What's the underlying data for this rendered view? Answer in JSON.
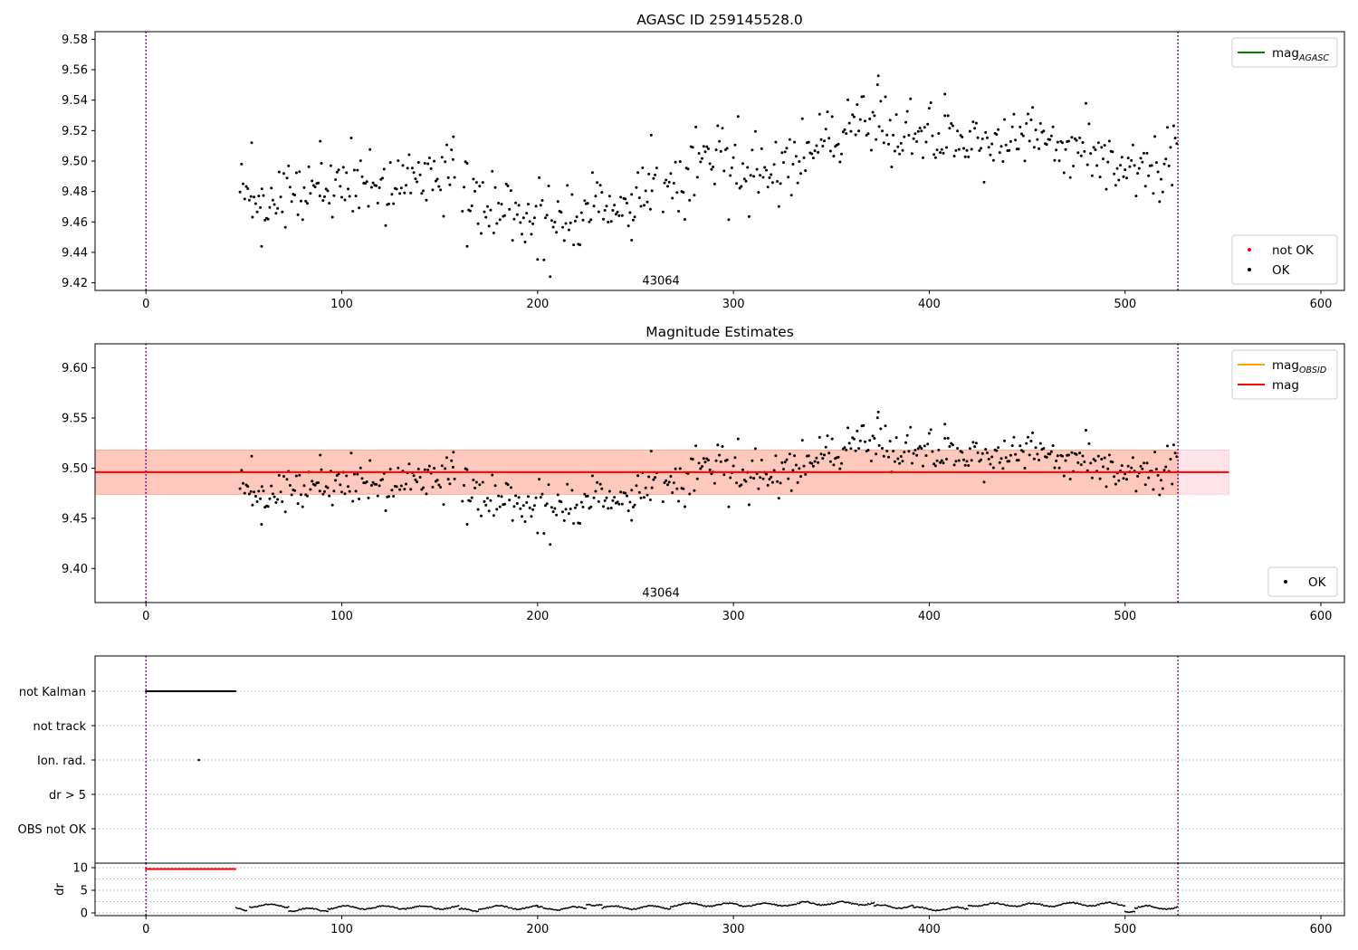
{
  "figure_title": "AGASC ID 259145528.0",
  "colors": {
    "ok": "#000000",
    "not_ok": "#ff0000",
    "agasc": "#008000",
    "obsid": "#ffa500",
    "mag": "#ff0000",
    "vline": "#800080",
    "band_pink": "#ffc0cb",
    "band_orange": "#ffa07a"
  },
  "chart_data": [
    {
      "type": "scatter",
      "title": "AGASC ID 259145528.0",
      "xlim": [
        -26,
        612
      ],
      "ylim": [
        9.415,
        9.585
      ],
      "xticks": [
        0,
        100,
        200,
        300,
        400,
        500,
        600
      ],
      "yticks": [
        9.42,
        9.44,
        9.46,
        9.48,
        9.5,
        9.52,
        9.54,
        9.56,
        9.58
      ],
      "ytick_labels": [
        "9.42",
        "9.44",
        "9.46",
        "9.48",
        "9.50",
        "9.52",
        "9.54",
        "9.56",
        "9.58"
      ],
      "annotation": {
        "text": "43064",
        "x": 263,
        "y": 9.419
      },
      "vlines": [
        0,
        527
      ],
      "legends": [
        {
          "position": "top-right",
          "entries": [
            {
              "label": "mag",
              "sub": "AGASC",
              "kind": "line",
              "color": "#008000"
            }
          ]
        },
        {
          "position": "bottom-right",
          "entries": [
            {
              "label": "not OK",
              "kind": "point",
              "color": "#ff0000"
            },
            {
              "label": "OK",
              "kind": "point",
              "color": "#000000"
            }
          ]
        }
      ],
      "series": [
        {
          "name": "OK",
          "kind": "points",
          "x_range": [
            48,
            527
          ],
          "trend": [
            [
              48,
              9.485
            ],
            [
              60,
              9.47
            ],
            [
              80,
              9.485
            ],
            [
              130,
              9.485
            ],
            [
              150,
              9.49
            ],
            [
              175,
              9.47
            ],
            [
              215,
              9.46
            ],
            [
              240,
              9.47
            ],
            [
              270,
              9.485
            ],
            [
              290,
              9.505
            ],
            [
              320,
              9.49
            ],
            [
              340,
              9.51
            ],
            [
              375,
              9.525
            ],
            [
              395,
              9.515
            ],
            [
              420,
              9.512
            ],
            [
              450,
              9.518
            ],
            [
              480,
              9.508
            ],
            [
              505,
              9.495
            ],
            [
              527,
              9.505
            ]
          ],
          "scatter_sd": 0.011,
          "spikes": [
            [
              54,
              9.512
            ],
            [
              89,
              9.513
            ],
            [
              157,
              9.516
            ],
            [
              258,
              9.517
            ],
            [
              374,
              9.556
            ],
            [
              408,
              9.544
            ],
            [
              59,
              9.444
            ],
            [
              164,
              9.444
            ],
            [
              248,
              9.448
            ]
          ]
        }
      ]
    },
    {
      "type": "scatter",
      "title": "Magnitude Estimates",
      "xlim": [
        -26,
        612
      ],
      "ylim": [
        9.366,
        9.624
      ],
      "xticks": [
        0,
        100,
        200,
        300,
        400,
        500,
        600
      ],
      "yticks": [
        9.4,
        9.45,
        9.5,
        9.55,
        9.6
      ],
      "ytick_labels": [
        "9.40",
        "9.45",
        "9.50",
        "9.55",
        "9.60"
      ],
      "annotation": {
        "text": "43064",
        "x": 263,
        "y": 9.372
      },
      "vlines": [
        0,
        527
      ],
      "mag_line": {
        "y": 9.496,
        "x_range": [
          -26,
          553
        ]
      },
      "bands": [
        {
          "color": "#ffc0cb",
          "x_range": [
            -26,
            553
          ],
          "y_range": [
            9.474,
            9.518
          ]
        },
        {
          "color": "#ffa07a",
          "x_range": [
            -26,
            527
          ],
          "y_range": [
            9.474,
            9.518
          ]
        }
      ],
      "legends": [
        {
          "position": "top-right",
          "entries": [
            {
              "label": "mag",
              "sub": "OBSID",
              "kind": "line",
              "color": "#ffa500"
            },
            {
              "label": "mag",
              "kind": "line",
              "color": "#ff0000"
            }
          ]
        },
        {
          "position": "bottom-right",
          "entries": [
            {
              "label": "OK",
              "kind": "point",
              "color": "#000000"
            }
          ]
        }
      ],
      "series": [
        {
          "name": "OK",
          "kind": "points",
          "same_as_panel": 0
        }
      ]
    },
    {
      "type": "scatter",
      "xlim": [
        -26,
        612
      ],
      "category_labels": [
        "not Kalman",
        "not track",
        "Ion. rad.",
        "dr > 5",
        "OBS not OK"
      ],
      "vlines": [
        0,
        527
      ],
      "flags": [
        {
          "category": "not Kalman",
          "x_range": [
            0,
            46
          ],
          "step": 0.6
        },
        {
          "category": "Ion. rad.",
          "points": [
            27
          ]
        }
      ]
    },
    {
      "type": "scatter",
      "xlim": [
        -26,
        612
      ],
      "ylim": [
        -0.6,
        11
      ],
      "ylabel": "dr",
      "xticks": [
        0,
        100,
        200,
        300,
        400,
        500,
        600
      ],
      "yticks": [
        0,
        5,
        10
      ],
      "ytick_labels": [
        "0",
        "5",
        "10"
      ],
      "vlines": [
        0,
        527
      ],
      "capped": {
        "x_range": [
          0,
          46
        ],
        "y": 9.7,
        "color": "#ff0000"
      },
      "segments": [
        [
          46,
          52,
          0.8
        ],
        [
          53,
          73,
          1.6
        ],
        [
          73,
          93,
          0.7
        ],
        [
          93,
          160,
          1.2
        ],
        [
          160,
          170,
          0.6
        ],
        [
          170,
          200,
          1.2
        ],
        [
          200,
          225,
          1.0
        ],
        [
          225,
          233,
          2.0
        ],
        [
          233,
          268,
          1.2
        ],
        [
          268,
          323,
          1.8
        ],
        [
          323,
          334,
          1.9
        ],
        [
          334,
          372,
          2.1
        ],
        [
          372,
          392,
          1.4
        ],
        [
          392,
          420,
          0.9
        ],
        [
          420,
          468,
          1.8
        ],
        [
          468,
          500,
          1.9
        ],
        [
          500,
          505,
          0.5
        ],
        [
          505,
          527,
          1.2
        ]
      ]
    }
  ]
}
